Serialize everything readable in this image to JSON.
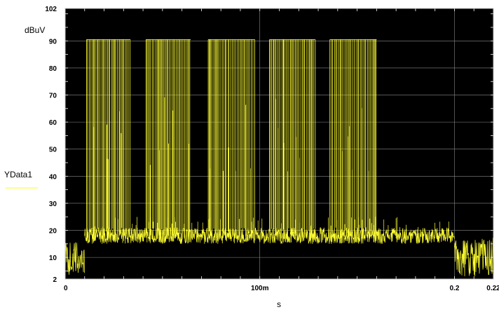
{
  "chart_data": {
    "type": "line",
    "y_unit": "dBuV",
    "xlabel": "s",
    "xlim": [
      0,
      0.22
    ],
    "ylim": [
      2,
      102
    ],
    "y_ticks": [
      2,
      10,
      20,
      30,
      40,
      50,
      60,
      70,
      80,
      90,
      102
    ],
    "y_tick_labels": [
      "2",
      "10",
      "20",
      "30",
      "40",
      "50",
      "60",
      "70",
      "80",
      "90",
      "102"
    ],
    "x_ticks": [
      0,
      0.1,
      0.2,
      0.22
    ],
    "x_tick_labels": [
      "0",
      "100m",
      "0.2",
      "0.22"
    ],
    "grid": true,
    "background": "#000000",
    "series": [
      {
        "name": "YData1",
        "color": "#ffff33",
        "noise_segments": [
          {
            "x": [
              0,
              0.01
            ],
            "y_range": [
              3,
              16
            ]
          },
          {
            "x": [
              0.01,
              0.2
            ],
            "y_range": [
              15,
              21
            ]
          },
          {
            "x": [
              0.2,
              0.22
            ],
            "y_range": [
              3,
              17
            ]
          }
        ],
        "bursts": [
          {
            "x": [
              0.011,
              0.0335
            ],
            "y_peak": 90.5
          },
          {
            "x": [
              0.0415,
              0.0645
            ],
            "y_peak": 90.5
          },
          {
            "x": [
              0.0735,
              0.0975
            ],
            "y_peak": 90.5
          },
          {
            "x": [
              0.105,
              0.1285
            ],
            "y_peak": 90.5
          },
          {
            "x": [
              0.136,
              0.16
            ],
            "y_peak": 90.5
          }
        ]
      }
    ]
  }
}
